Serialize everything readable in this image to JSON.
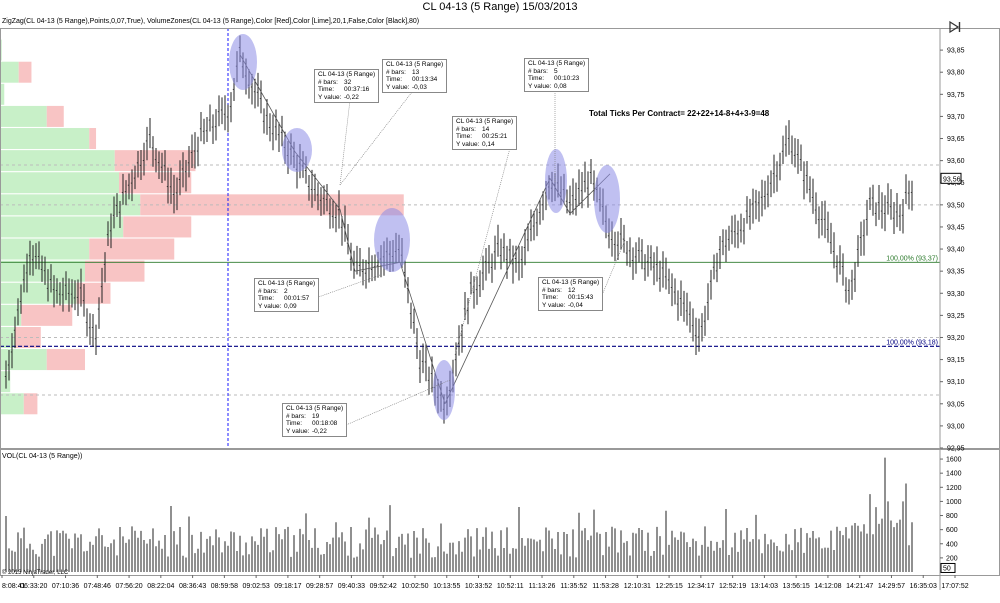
{
  "title": "CL 04-13 (5 Range)  15/03/2013",
  "indicator_label": "ZigZag(CL 04-13 (5 Range),Points,0,07,True), VolumeZones(CL 04-13 (5 Range),Color [Red],Color [Lime],20,1,False,Color [Black],80)",
  "vol_label": "VOL(CL 04-13 (5 Range))",
  "copyright": "© 2013 NinjaTrader, LLC",
  "total_note": "Total Ticks Per Contract= 22+22+14-8+4+3-9=48",
  "icons": {
    "top_right": "skip-to-end-icon"
  },
  "colors": {
    "up_zone": "#c8f0c8",
    "down_zone": "#f8c4c4",
    "highlight": "#8c8ce6",
    "level": "#2c7a2c",
    "dashed": "#000080"
  },
  "last_price": "93,56",
  "fib_levels": [
    {
      "label": "100,00% (93,37)",
      "value": 93.37,
      "color": "#2c7a2c"
    },
    {
      "label": "100,00% (93,18)",
      "value": 93.18,
      "color": "#000080"
    }
  ],
  "tooltips": [
    {
      "title": "CL 04-13 (5 Range)",
      "bars": "32",
      "time": "00:37:16",
      "yvalue": "-0,22"
    },
    {
      "title": "CL 04-13 (5 Range)",
      "bars": "13",
      "time": "00:13:34",
      "yvalue": "-0,03"
    },
    {
      "title": "CL 04-13 (5 Range)",
      "bars": "14",
      "time": "00:25:21",
      "yvalue": "0,14"
    },
    {
      "title": "CL 04-13 (5 Range)",
      "bars": "5",
      "time": "00:10:23",
      "yvalue": "0,08"
    },
    {
      "title": "CL 04-13 (5 Range)",
      "bars": "2",
      "time": "00:01:57",
      "yvalue": "0,09"
    },
    {
      "title": "CL 04-13 (5 Range)",
      "bars": "12",
      "time": "00:15:43",
      "yvalue": "-0,04"
    },
    {
      "title": "CL 04-13 (5 Range)",
      "bars": "19",
      "time": "00:18:08",
      "yvalue": "-0,22"
    }
  ],
  "tooltip_keys": {
    "bars": "# bars:",
    "time": "Time:",
    "yvalue": "Y value:"
  },
  "chart_data": {
    "type": "bar",
    "price_axis": {
      "ylim": [
        92.95,
        93.9
      ],
      "ticks": [
        "93,85",
        "93,80",
        "93,75",
        "93,70",
        "93,65",
        "93,60",
        "93,55",
        "93,50",
        "93,45",
        "93,40",
        "93,35",
        "93,30",
        "93,25",
        "93,20",
        "93,15",
        "93,10",
        "93,05",
        "93,00",
        "92,95"
      ]
    },
    "volume_axis": {
      "ylim": [
        0,
        1700
      ],
      "ticks": [
        "1600",
        "1400",
        "1200",
        "1000",
        "800",
        "600",
        "400",
        "200"
      ],
      "last_value": "50"
    },
    "time_ticks": [
      "8:08:41",
      "06:33:20",
      "07:10:36",
      "07:48:46",
      "07:56:20",
      "08:22:04",
      "08:36:43",
      "08:59:58",
      "09:02:53",
      "09:18:17",
      "09:28:57",
      "09:40:33",
      "09:52:42",
      "10:02:50",
      "10:13:55",
      "10:33:52",
      "10:52:11",
      "11:13:26",
      "11:35:52",
      "11:53:28",
      "12:10:31",
      "12:25:15",
      "12:34:17",
      "12:52:19",
      "13:14:03",
      "13:56:15",
      "14:12:08",
      "14:21:47",
      "14:29:57",
      "16:35:03",
      "17:07:52"
    ],
    "zigzag_pivots": [
      {
        "time": "08:59:58",
        "price": 93.84
      },
      {
        "time": "09:18:17",
        "price": 93.62
      },
      {
        "time": "09:40:33",
        "price": 93.48
      },
      {
        "time": "09:52:42",
        "price": 93.35
      },
      {
        "time": "10:02:50",
        "price": 93.37
      },
      {
        "time": "10:13:55",
        "price": 93.08
      },
      {
        "time": "11:13:26",
        "price": 93.56
      },
      {
        "time": "11:35:52",
        "price": 93.48
      },
      {
        "time": "11:53:28",
        "price": 93.56
      }
    ],
    "volume_zones": {
      "prices": [
        93.85,
        93.8,
        93.75,
        93.7,
        93.65,
        93.6,
        93.55,
        93.5,
        93.45,
        93.4,
        93.35,
        93.3,
        93.25,
        93.2,
        93.15,
        93.1,
        93.05
      ],
      "up": [
        2,
        22,
        5,
        55,
        105,
        135,
        140,
        165,
        145,
        105,
        100,
        90,
        25,
        18,
        55,
        12,
        28
      ],
      "down": [
        0,
        15,
        0,
        20,
        8,
        95,
        85,
        310,
        80,
        100,
        70,
        40,
        60,
        30,
        45,
        0,
        16
      ]
    }
  }
}
